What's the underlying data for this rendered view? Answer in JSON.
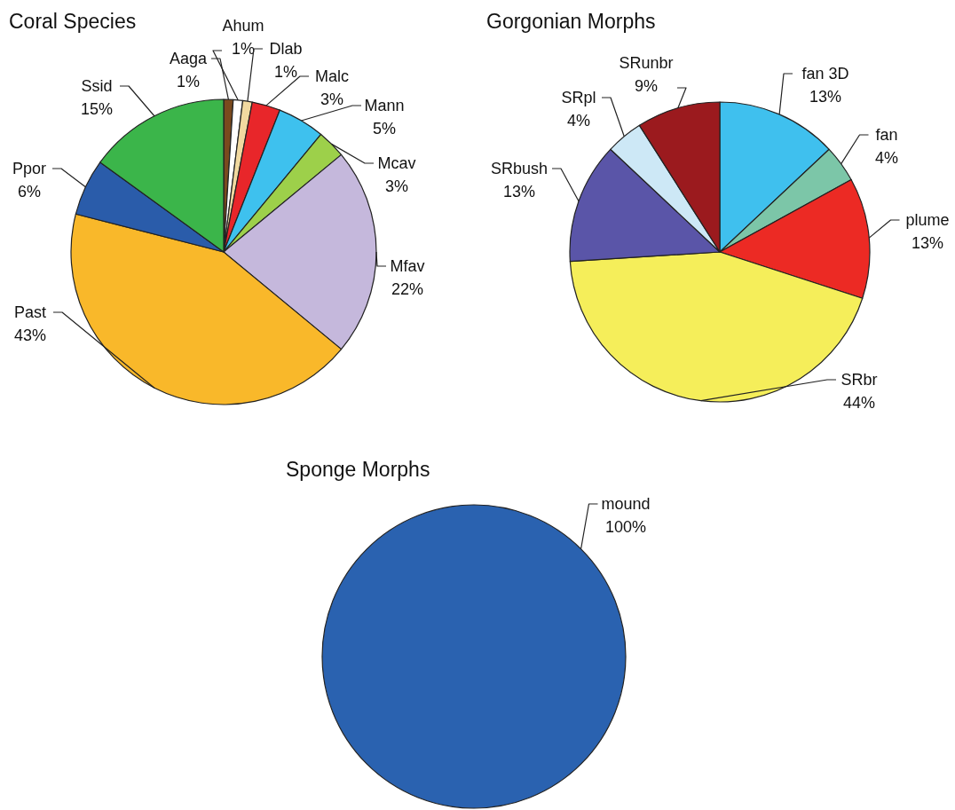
{
  "chart_data": [
    {
      "type": "pie",
      "title": "Coral Species",
      "categories": [
        "Aaga",
        "Ahum",
        "Dlab",
        "Malc",
        "Mann",
        "Mcav",
        "Mfav",
        "Past",
        "Ppor",
        "Ssid"
      ],
      "values": [
        1,
        1,
        1,
        3,
        5,
        3,
        22,
        43,
        6,
        15
      ],
      "colors": [
        "#7a4a1e",
        "#ffffff",
        "#f1d9a0",
        "#e8262a",
        "#3ec1ee",
        "#9dd04a",
        "#c5b8dc",
        "#f9b82a",
        "#2a5caa",
        "#3bb54a"
      ],
      "value_labels": [
        "1%",
        "1%",
        "1%",
        "3%",
        "5%",
        "3%",
        "22%",
        "43%",
        "6%",
        "15%"
      ]
    },
    {
      "type": "pie",
      "title": "Gorgonian Morphs",
      "categories": [
        "fan 3D",
        "fan",
        "plume",
        "SRbr",
        "SRbush",
        "SRpl",
        "SRunbr"
      ],
      "values": [
        13,
        4,
        13,
        44,
        13,
        4,
        9
      ],
      "colors": [
        "#3fc0ee",
        "#7cc6a8",
        "#ec2a24",
        "#f5ee5a",
        "#5a55a8",
        "#cde8f6",
        "#9b1a1e"
      ],
      "value_labels": [
        "13%",
        "4%",
        "13%",
        "44%",
        "13%",
        "4%",
        "9%"
      ]
    },
    {
      "type": "pie",
      "title": "Sponge Morphs",
      "categories": [
        "mound"
      ],
      "values": [
        100
      ],
      "colors": [
        "#2a62b0"
      ],
      "value_labels": [
        "100%"
      ]
    }
  ]
}
